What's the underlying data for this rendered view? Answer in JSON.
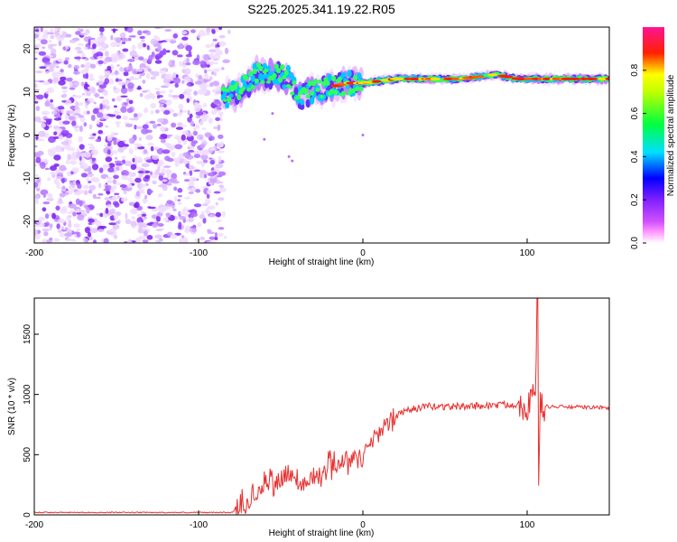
{
  "figure": {
    "title": "S225.2025.341.19.22.R05"
  },
  "chart_data": [
    {
      "type": "heatmap",
      "name": "spectrogram",
      "xlabel": "Height of straight line (km)",
      "ylabel": "Frequency (Hz)",
      "xlim": [
        -200,
        150
      ],
      "ylim": [
        -25,
        25
      ],
      "x_ticks": [
        -200,
        -100,
        0,
        100
      ],
      "y_ticks": [
        -20,
        -10,
        0,
        10,
        20
      ],
      "colorbar": {
        "label": "Normalized spectral amplitude",
        "range": [
          0,
          1
        ],
        "ticks": [
          0,
          0.2,
          0.4,
          0.6,
          0.8
        ],
        "colors": [
          "#ffffff",
          "#e8c8ff",
          "#8a2be2",
          "#0000ff",
          "#00ffff",
          "#00ff00",
          "#ffff00",
          "#ff0000",
          "#ff1493"
        ]
      },
      "noise_region": {
        "x_range": [
          -200,
          -85
        ],
        "freq_range": [
          -25,
          25
        ],
        "level": 0.3
      },
      "ridge": [
        {
          "x": -85,
          "freq": 9
        },
        {
          "x": -75,
          "freq": 10
        },
        {
          "x": -65,
          "freq": 14
        },
        {
          "x": -55,
          "freq": 14
        },
        {
          "x": -45,
          "freq": 13
        },
        {
          "x": -38,
          "freq": 9
        },
        {
          "x": -30,
          "freq": 10
        },
        {
          "x": -20,
          "freq": 11
        },
        {
          "x": -10,
          "freq": 12
        },
        {
          "x": 0,
          "freq": 12
        },
        {
          "x": 20,
          "freq": 13
        },
        {
          "x": 40,
          "freq": 13
        },
        {
          "x": 60,
          "freq": 13
        },
        {
          "x": 80,
          "freq": 14
        },
        {
          "x": 95,
          "freq": 13
        },
        {
          "x": 105,
          "freq": 13
        },
        {
          "x": 120,
          "freq": 13
        },
        {
          "x": 150,
          "freq": 13
        }
      ]
    },
    {
      "type": "line",
      "name": "snr",
      "xlabel": "Height of straight line (km)",
      "ylabel": "SNR (10 * v/v)",
      "xlim": [
        -200,
        150
      ],
      "ylim": [
        0,
        1800
      ],
      "x_ticks": [
        -200,
        -100,
        0,
        100
      ],
      "y_ticks": [
        0,
        500,
        1000,
        1500
      ],
      "color": "#e83030",
      "series": [
        {
          "name": "SNR",
          "x": [
            -200,
            -80,
            -75,
            -60,
            -45,
            -35,
            -20,
            0,
            10,
            20,
            30,
            40,
            60,
            80,
            95,
            100,
            105,
            106,
            107,
            108,
            110,
            150
          ],
          "y": [
            20,
            20,
            60,
            230,
            330,
            250,
            420,
            500,
            700,
            820,
            880,
            900,
            900,
            910,
            920,
            900,
            1000,
            1800,
            300,
            900,
            900,
            890
          ]
        }
      ]
    }
  ]
}
